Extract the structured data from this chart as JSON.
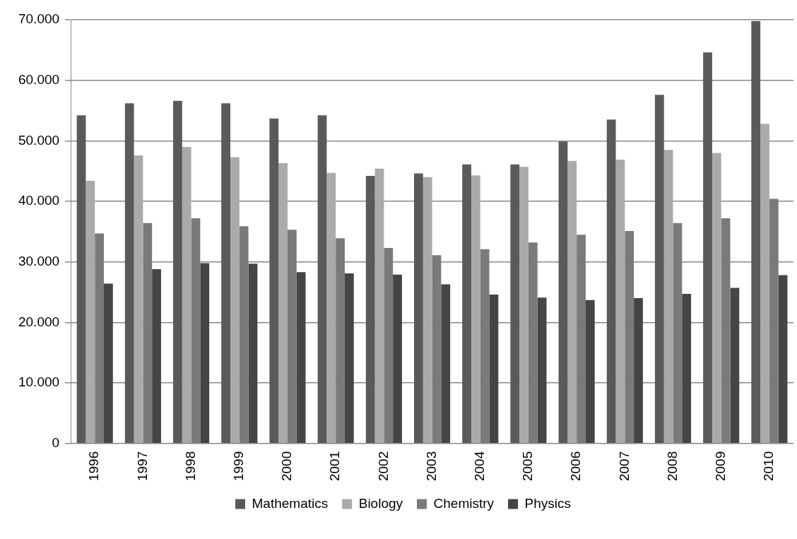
{
  "chart_data": {
    "type": "bar",
    "categories": [
      "1996",
      "1997",
      "1998",
      "1999",
      "2000",
      "2001",
      "2002",
      "2003",
      "2004",
      "2005",
      "2006",
      "2007",
      "2008",
      "2009",
      "2010"
    ],
    "series": [
      {
        "name": "Mathematics",
        "color": "#5a5a5a",
        "values": [
          54200,
          56200,
          56600,
          56200,
          53700,
          54200,
          44200,
          44600,
          46100,
          46100,
          49900,
          53500,
          57600,
          64600,
          69800
        ]
      },
      {
        "name": "Biology",
        "color": "#aaaaaa",
        "values": [
          43400,
          47600,
          49000,
          47300,
          46300,
          44700,
          45400,
          44000,
          44300,
          45700,
          46700,
          46900,
          48500,
          48000,
          52800
        ]
      },
      {
        "name": "Chemistry",
        "color": "#7a7a7a",
        "values": [
          34700,
          36400,
          37200,
          35900,
          35300,
          33900,
          32300,
          31100,
          32100,
          33200,
          34500,
          35100,
          36400,
          37200,
          40400
        ]
      },
      {
        "name": "Physics",
        "color": "#454545",
        "values": [
          26400,
          28800,
          29800,
          29700,
          28300,
          28100,
          27900,
          26300,
          24600,
          24100,
          23700,
          24000,
          24700,
          25700,
          27800
        ]
      }
    ],
    "ylim": [
      0,
      70000
    ],
    "yticks": [
      {
        "value": 0,
        "label": "0"
      },
      {
        "value": 10000,
        "label": "10.000"
      },
      {
        "value": 20000,
        "label": "20.000"
      },
      {
        "value": 30000,
        "label": "30.000"
      },
      {
        "value": 40000,
        "label": "40.000"
      },
      {
        "value": 50000,
        "label": "50.000"
      },
      {
        "value": 60000,
        "label": "60.000"
      },
      {
        "value": 70000,
        "label": "70.000"
      }
    ],
    "grid": "y",
    "legend": "bottom"
  }
}
